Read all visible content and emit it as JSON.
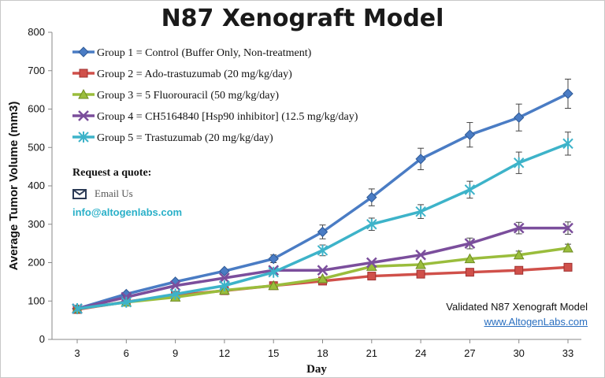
{
  "chart_data": {
    "type": "line",
    "title": "N87 Xenograft Model",
    "xlabel": "Day",
    "ylabel": "Average Tumor Volume (mm3)",
    "x": [
      3,
      6,
      9,
      12,
      15,
      18,
      21,
      24,
      27,
      30,
      33
    ],
    "ylim": [
      0,
      800
    ],
    "yticks": [
      0,
      100,
      200,
      300,
      400,
      500,
      600,
      700,
      800
    ],
    "grid": false,
    "legend_position": "top-left",
    "series": [
      {
        "name": "Group 1 = Control (Buffer Only, Non-treatment)",
        "color": "#4a7cc4",
        "marker": "diamond",
        "values": [
          80,
          118,
          150,
          178,
          210,
          280,
          370,
          470,
          533,
          578,
          640
        ],
        "errors": [
          0,
          0,
          0,
          0,
          10,
          18,
          22,
          28,
          32,
          35,
          38
        ]
      },
      {
        "name": "Group 2 = Ado-trastuzumab (20 mg/kg/day)",
        "color": "#d0504a",
        "marker": "square",
        "values": [
          78,
          98,
          115,
          127,
          140,
          152,
          165,
          170,
          175,
          180,
          188
        ],
        "errors": [
          0,
          0,
          0,
          0,
          0,
          0,
          0,
          0,
          0,
          0,
          0
        ]
      },
      {
        "name": "Group 3 = 5 Fluorouracil (50 mg/kg/day)",
        "color": "#9abd3c",
        "marker": "triangle",
        "values": [
          80,
          97,
          110,
          128,
          140,
          158,
          190,
          195,
          210,
          220,
          238
        ],
        "errors": [
          0,
          0,
          0,
          0,
          0,
          0,
          0,
          0,
          0,
          10,
          10
        ]
      },
      {
        "name": "Group 4 = CH5164840 [Hsp90 inhibitor] (12.5 mg/kg/day)",
        "color": "#7b4e9c",
        "marker": "x",
        "values": [
          80,
          110,
          140,
          160,
          180,
          180,
          200,
          220,
          250,
          290,
          290
        ],
        "errors": [
          0,
          0,
          0,
          0,
          0,
          0,
          0,
          0,
          14,
          15,
          16
        ]
      },
      {
        "name": "Group 5 = Trastuzumab (20 mg/kg/day)",
        "color": "#3db3c9",
        "marker": "star",
        "values": [
          80,
          97,
          118,
          140,
          175,
          232,
          300,
          333,
          390,
          460,
          510
        ],
        "errors": [
          0,
          0,
          0,
          0,
          0,
          14,
          16,
          18,
          22,
          28,
          30
        ]
      }
    ]
  },
  "quote": {
    "title": "Request a quote:",
    "email_label": "Email Us",
    "email_address": "info@altogenlabs.com"
  },
  "credit": {
    "line1": "Validated N87 Xenograft Model",
    "link": "www.AltogenLabs.com"
  }
}
